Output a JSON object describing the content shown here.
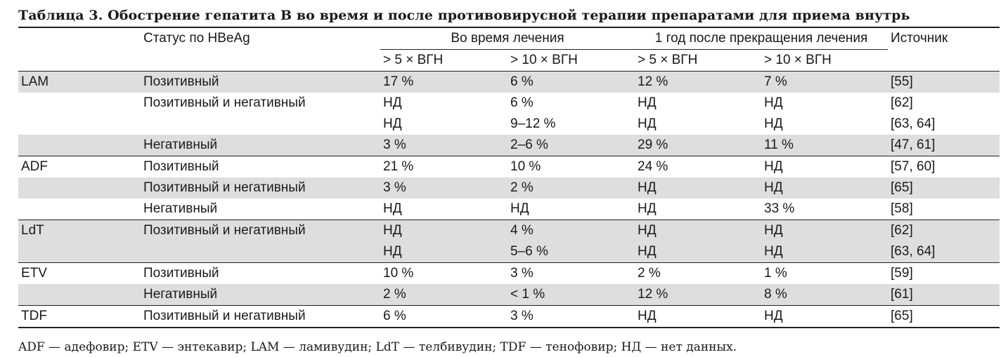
{
  "title": "Таблица 3. Обострение гепатита В во время и после противовирусной терапии препаратами для приема внутрь",
  "header": {
    "status": "Статус по HBeAg",
    "during": "Во время лечения",
    "after": "1 год после прекращения лечения",
    "source": "Источник",
    "sub": [
      "> 5 × ВГН",
      "> 10 × ВГН",
      "> 5 × ВГН",
      "> 10 × ВГН"
    ]
  },
  "rows": [
    {
      "drug": "LAM",
      "status": "Позитивный",
      "d5": "17 %",
      "d10": "6 %",
      "a5": "12 %",
      "a10": "7 %",
      "src": "[55]"
    },
    {
      "drug": "",
      "status": "Позитивный и негативный",
      "d5": "НД",
      "d10": "6 %",
      "a5": "НД",
      "a10": "НД",
      "src": "[62]"
    },
    {
      "drug": "",
      "status": "",
      "d5": "НД",
      "d10": "9–12 %",
      "a5": "НД",
      "a10": "НД",
      "src": "[63, 64]"
    },
    {
      "drug": "",
      "status": "Негативный",
      "d5": "3 %",
      "d10": "2–6 %",
      "a5": "29 %",
      "a10": "11 %",
      "src": "[47, 61]"
    },
    {
      "drug": "ADF",
      "status": "Позитивный",
      "d5": "21 %",
      "d10": "10 %",
      "a5": "24 %",
      "a10": "НД",
      "src": "[57, 60]"
    },
    {
      "drug": "",
      "status": "Позитивный и негативный",
      "d5": "3 %",
      "d10": "2 %",
      "a5": "НД",
      "a10": "НД",
      "src": "[65]"
    },
    {
      "drug": "",
      "status": "Негативный",
      "d5": "НД",
      "d10": "НД",
      "a5": "НД",
      "a10": "33 %",
      "src": "[58]"
    },
    {
      "drug": "LdT",
      "status": "Позитивный и негативный",
      "d5": "НД",
      "d10": "4 %",
      "a5": "НД",
      "a10": "НД",
      "src": "[62]"
    },
    {
      "drug": "",
      "status": "",
      "d5": "НД",
      "d10": "5–6 %",
      "a5": "НД",
      "a10": "НД",
      "src": "[63, 64]"
    },
    {
      "drug": "ETV",
      "status": "Позитивный",
      "d5": "10 %",
      "d10": "3 %",
      "a5": "2 %",
      "a10": "1 %",
      "src": "[59]"
    },
    {
      "drug": "",
      "status": "Негативный",
      "d5": "2 %",
      "d10": "< 1 %",
      "a5": "12 %",
      "a10": "8 %",
      "src": "[61]"
    },
    {
      "drug": "TDF",
      "status": "Позитивный и негативный",
      "d5": "6 %",
      "d10": "3 %",
      "a5": "НД",
      "a10": "НД",
      "src": "[65]"
    }
  ],
  "footnote": "ADF — адефовир; ETV — энтекавир; LAM — ламивудин; LdT — телбивудин; TDF — тенофовир; НД — нет данных."
}
